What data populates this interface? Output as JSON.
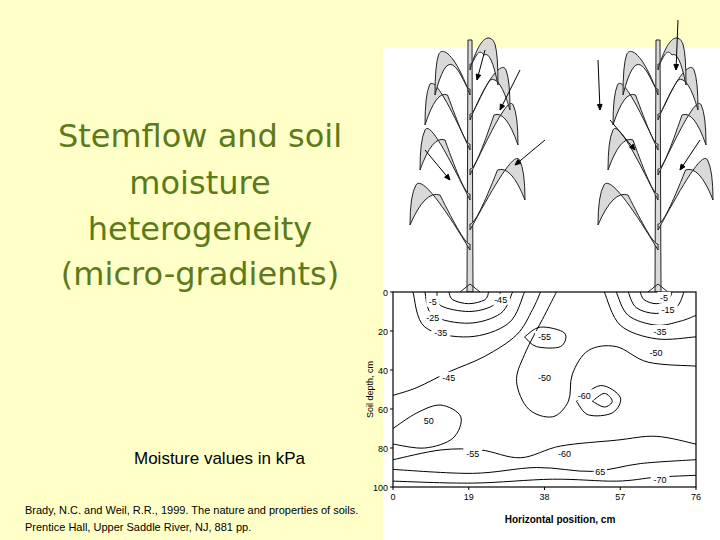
{
  "slide": {
    "title": [
      "Stemflow and soil",
      "moisture",
      "heterogeneity",
      "(micro-gradients)"
    ],
    "note": "Moisture values in kPa",
    "citation": [
      "Brady, N.C. and Weil, R.R., 1999. The nature and properties of soils.",
      "Prentice Hall, Upper Saddle River, NJ, 881 pp."
    ]
  },
  "chart_data": {
    "type": "contour",
    "x_label": "Horizontal position, cm",
    "y_label": "Soil depth, cm",
    "xlim": [
      0,
      76
    ],
    "ylim": [
      0,
      100
    ],
    "xticks": [
      0,
      19,
      38,
      57,
      76
    ],
    "yticks": [
      0,
      20,
      40,
      60,
      80,
      100
    ],
    "contours": [
      {
        "points": [
          [
            14,
            0
          ],
          [
            15,
            4
          ],
          [
            19,
            6
          ],
          [
            23,
            4
          ],
          [
            24,
            0
          ]
        ]
      },
      {
        "points": [
          [
            11,
            0
          ],
          [
            12,
            7
          ],
          [
            19,
            10
          ],
          [
            25,
            7
          ],
          [
            27,
            0
          ]
        ]
      },
      {
        "points": [
          [
            8,
            0
          ],
          [
            10,
            12
          ],
          [
            19,
            16
          ],
          [
            27,
            11
          ],
          [
            30,
            0
          ]
        ]
      },
      {
        "points": [
          [
            5,
            0
          ],
          [
            8,
            18
          ],
          [
            19,
            23
          ],
          [
            29,
            16
          ],
          [
            33,
            0
          ]
        ]
      },
      {
        "points": [
          [
            37,
            0
          ],
          [
            35,
            9
          ],
          [
            31,
            22
          ],
          [
            23,
            33
          ],
          [
            14,
            41
          ],
          [
            6,
            49
          ],
          [
            0,
            53
          ]
        ]
      },
      {
        "points": [
          [
            62,
            0
          ],
          [
            63,
            4
          ],
          [
            66,
            6
          ],
          [
            69,
            4
          ],
          [
            70,
            0
          ]
        ]
      },
      {
        "points": [
          [
            59,
            0
          ],
          [
            61,
            8
          ],
          [
            66,
            11
          ],
          [
            71,
            8
          ],
          [
            73,
            0
          ]
        ]
      },
      {
        "points": [
          [
            56,
            0
          ],
          [
            59,
            12
          ],
          [
            66,
            17
          ],
          [
            72,
            15
          ],
          [
            76,
            12
          ]
        ]
      },
      {
        "points": [
          [
            53,
            0
          ],
          [
            57,
            17
          ],
          [
            66,
            24
          ],
          [
            76,
            23
          ]
        ]
      },
      {
        "points": [
          [
            33,
            23
          ],
          [
            37,
            18
          ],
          [
            43,
            21
          ],
          [
            42,
            28
          ],
          [
            36,
            28
          ],
          [
            33,
            23
          ]
        ]
      },
      {
        "points": [
          [
            41,
            0
          ],
          [
            38,
            12
          ],
          [
            33,
            32
          ],
          [
            31,
            46
          ],
          [
            34,
            60
          ],
          [
            40,
            64
          ],
          [
            44,
            56
          ],
          [
            45,
            42
          ],
          [
            49,
            30
          ],
          [
            56,
            28
          ],
          [
            64,
            36
          ],
          [
            76,
            38
          ]
        ]
      },
      {
        "points": [
          [
            46,
            56
          ],
          [
            52,
            48
          ],
          [
            57,
            54
          ],
          [
            55,
            62
          ],
          [
            49,
            63
          ],
          [
            46,
            56
          ]
        ]
      },
      {
        "points": [
          [
            50,
            56
          ],
          [
            53,
            52
          ],
          [
            55,
            56
          ],
          [
            53,
            59
          ],
          [
            50,
            56
          ]
        ]
      },
      {
        "points": [
          [
            0,
            70
          ],
          [
            6,
            62
          ],
          [
            12,
            58
          ],
          [
            17,
            64
          ],
          [
            15,
            75
          ],
          [
            8,
            80
          ],
          [
            0,
            78
          ]
        ]
      },
      {
        "points": [
          [
            0,
            86
          ],
          [
            12,
            81
          ],
          [
            22,
            81
          ],
          [
            32,
            85
          ],
          [
            42,
            79
          ],
          [
            56,
            76
          ],
          [
            66,
            74
          ],
          [
            76,
            78
          ]
        ]
      },
      {
        "points": [
          [
            0,
            91
          ],
          [
            20,
            93
          ],
          [
            36,
            90
          ],
          [
            50,
            92
          ],
          [
            62,
            88
          ],
          [
            76,
            86
          ]
        ]
      },
      {
        "points": [
          [
            0,
            97
          ],
          [
            20,
            98
          ],
          [
            40,
            96
          ],
          [
            56,
            97
          ],
          [
            66,
            95
          ],
          [
            76,
            94
          ]
        ]
      }
    ],
    "contour_labels": [
      {
        "text": "-5",
        "x": 10,
        "y": 5
      },
      {
        "text": "-25",
        "x": 10,
        "y": 13
      },
      {
        "text": "-35",
        "x": 12,
        "y": 21
      },
      {
        "text": "-45",
        "x": 27,
        "y": 4
      },
      {
        "text": "-5",
        "x": 68,
        "y": 3
      },
      {
        "text": "-15",
        "x": 69,
        "y": 9
      },
      {
        "text": "-35",
        "x": 67,
        "y": 20
      },
      {
        "text": "-55",
        "x": 38,
        "y": 23
      },
      {
        "text": "-50",
        "x": 66,
        "y": 31
      },
      {
        "text": "-45",
        "x": 14,
        "y": 44
      },
      {
        "text": "-50",
        "x": 38,
        "y": 44
      },
      {
        "text": "-60",
        "x": 48,
        "y": 53
      },
      {
        "text": "50",
        "x": 9,
        "y": 66
      },
      {
        "text": "-55",
        "x": 20,
        "y": 83
      },
      {
        "text": "-60",
        "x": 43,
        "y": 83
      },
      {
        "text": "65",
        "x": 52,
        "y": 92
      },
      {
        "text": "-70",
        "x": 67,
        "y": 96
      }
    ]
  }
}
